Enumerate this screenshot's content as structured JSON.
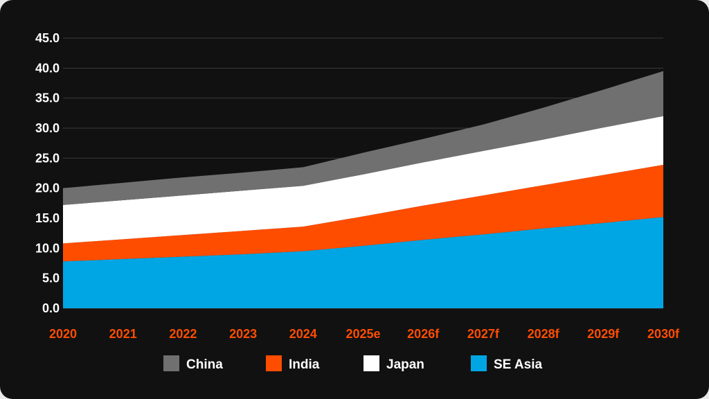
{
  "chart_data": {
    "type": "area",
    "stacked": true,
    "categories": [
      "2020",
      "2021",
      "2022",
      "2023",
      "2024",
      "2025e",
      "2026f",
      "2027f",
      "2028f",
      "2029f",
      "2030f"
    ],
    "series": [
      {
        "name": "SE Asia",
        "color": "#00a6e4",
        "values": [
          7.8,
          8.2,
          8.6,
          9.0,
          9.5,
          10.4,
          11.4,
          12.3,
          13.3,
          14.2,
          15.2
        ]
      },
      {
        "name": "India",
        "color": "#ff4d00",
        "values": [
          3.0,
          3.3,
          3.6,
          3.9,
          4.1,
          4.9,
          5.7,
          6.5,
          7.2,
          8.0,
          8.7
        ]
      },
      {
        "name": "Japan",
        "color": "#ffffff",
        "values": [
          6.4,
          6.5,
          6.6,
          6.7,
          6.8,
          7.0,
          7.2,
          7.4,
          7.6,
          7.9,
          8.1
        ]
      },
      {
        "name": "China",
        "color": "#707070",
        "values": [
          2.8,
          2.9,
          3.0,
          3.0,
          3.1,
          3.6,
          3.9,
          4.4,
          5.3,
          6.3,
          7.5
        ]
      }
    ],
    "legend_order": [
      "China",
      "India",
      "Japan",
      "SE Asia"
    ],
    "yticks": [
      "0.0",
      "5.0",
      "10.0",
      "15.0",
      "20.0",
      "25.0",
      "30.0",
      "35.0",
      "40.0",
      "45.0"
    ],
    "ylim": [
      0,
      45
    ],
    "grid": true,
    "legend_position": "bottom",
    "background": "#111111",
    "xtick_color": "#ff4d00"
  }
}
